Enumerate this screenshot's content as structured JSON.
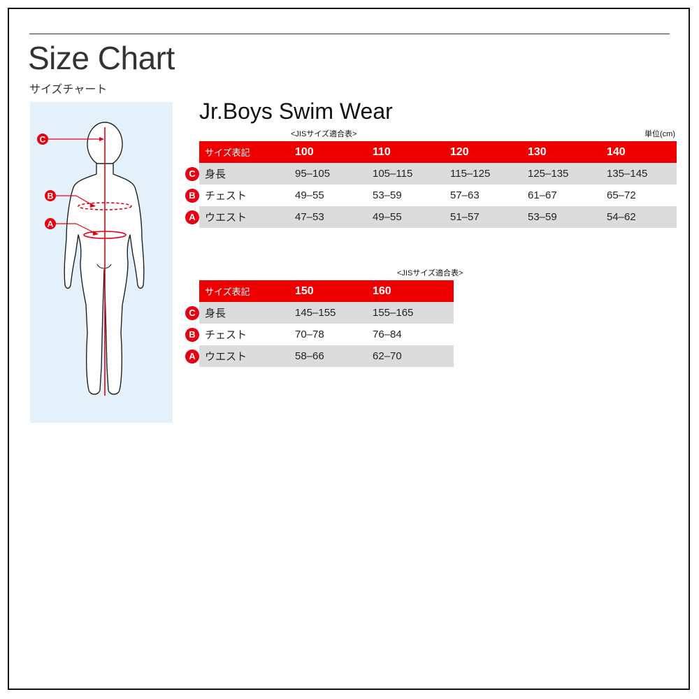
{
  "header": {
    "title": "Size Chart",
    "subtitle": "サイズチャート"
  },
  "figure": {
    "markers": [
      "C",
      "B",
      "A"
    ],
    "accent_color": "#e60012",
    "panel_color": "#e4f1fb"
  },
  "product": {
    "title": "Jr.Boys Swim Wear",
    "jis_note": "<JISサイズ適合表>",
    "unit": "単位(cm)"
  },
  "table1": {
    "header_label": "サイズ表記",
    "sizes": [
      "100",
      "110",
      "120",
      "130",
      "140"
    ],
    "rows": [
      {
        "marker": "C",
        "label": "身長",
        "values": [
          "95–105",
          "105–115",
          "115–125",
          "125–135",
          "135–145"
        ]
      },
      {
        "marker": "B",
        "label": "チェスト",
        "values": [
          "49–55",
          "53–59",
          "57–63",
          "61–67",
          "65–72"
        ]
      },
      {
        "marker": "A",
        "label": "ウエスト",
        "values": [
          "47–53",
          "49–55",
          "51–57",
          "53–59",
          "54–62"
        ]
      }
    ]
  },
  "table2": {
    "jis_note": "<JISサイズ適合表>",
    "header_label": "サイズ表記",
    "sizes": [
      "150",
      "160"
    ],
    "rows": [
      {
        "marker": "C",
        "label": "身長",
        "values": [
          "145–155",
          "155–165"
        ]
      },
      {
        "marker": "B",
        "label": "チェスト",
        "values": [
          "70–78",
          "76–84"
        ]
      },
      {
        "marker": "A",
        "label": "ウエスト",
        "values": [
          "58–66",
          "62–70"
        ]
      }
    ]
  }
}
